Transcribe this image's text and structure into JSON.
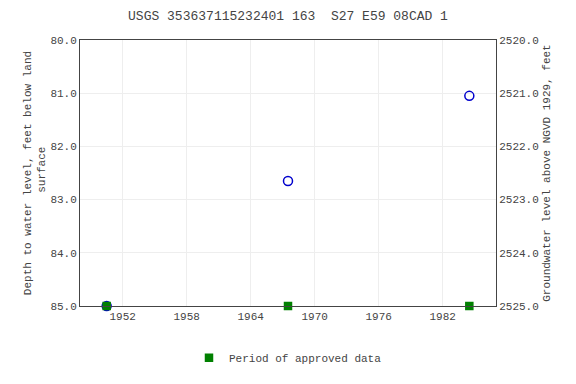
{
  "chart_data": {
    "type": "scatter",
    "title": "USGS 353637115232401 163  S27 E59 08CAD 1",
    "y_label": "Depth to water level, feet below land\n surface",
    "y2_label": "Groundwater level above NGVD 1929, feet",
    "x": [
      1950.5,
      1967.5,
      1984.5
    ],
    "xlim": [
      1948,
      1987
    ],
    "xticks": [
      1952,
      1958,
      1964,
      1970,
      1976,
      1982
    ],
    "ylim": [
      85.0,
      80.0
    ],
    "yticks": [
      {
        "value": 80.0,
        "label": "80.0"
      },
      {
        "value": 81.0,
        "label": "81.0"
      },
      {
        "value": 82.0,
        "label": "82.0"
      },
      {
        "value": 83.0,
        "label": "83.0"
      },
      {
        "value": 84.0,
        "label": "84.0"
      },
      {
        "value": 85.0,
        "label": "85.0"
      }
    ],
    "y2lim": [
      2525.0,
      2520.0
    ],
    "y2ticks": [
      {
        "value": 2520.0,
        "label": "2520.0"
      },
      {
        "value": 2521.0,
        "label": "2521.0"
      },
      {
        "value": 2522.0,
        "label": "2522.0"
      },
      {
        "value": 2523.0,
        "label": "2523.0"
      },
      {
        "value": 2524.0,
        "label": "2524.0"
      },
      {
        "value": 2525.0,
        "label": "2525.0"
      }
    ],
    "grid": true,
    "legend": "bottom",
    "series": [
      {
        "values": [
          85.0,
          82.65,
          81.05
        ],
        "color": "#0000cc",
        "marker": "circle-open"
      },
      {
        "name": "Period of approved data",
        "values": [
          85.0,
          85.0,
          85.0
        ],
        "color": "#008000",
        "marker": "square"
      }
    ]
  }
}
